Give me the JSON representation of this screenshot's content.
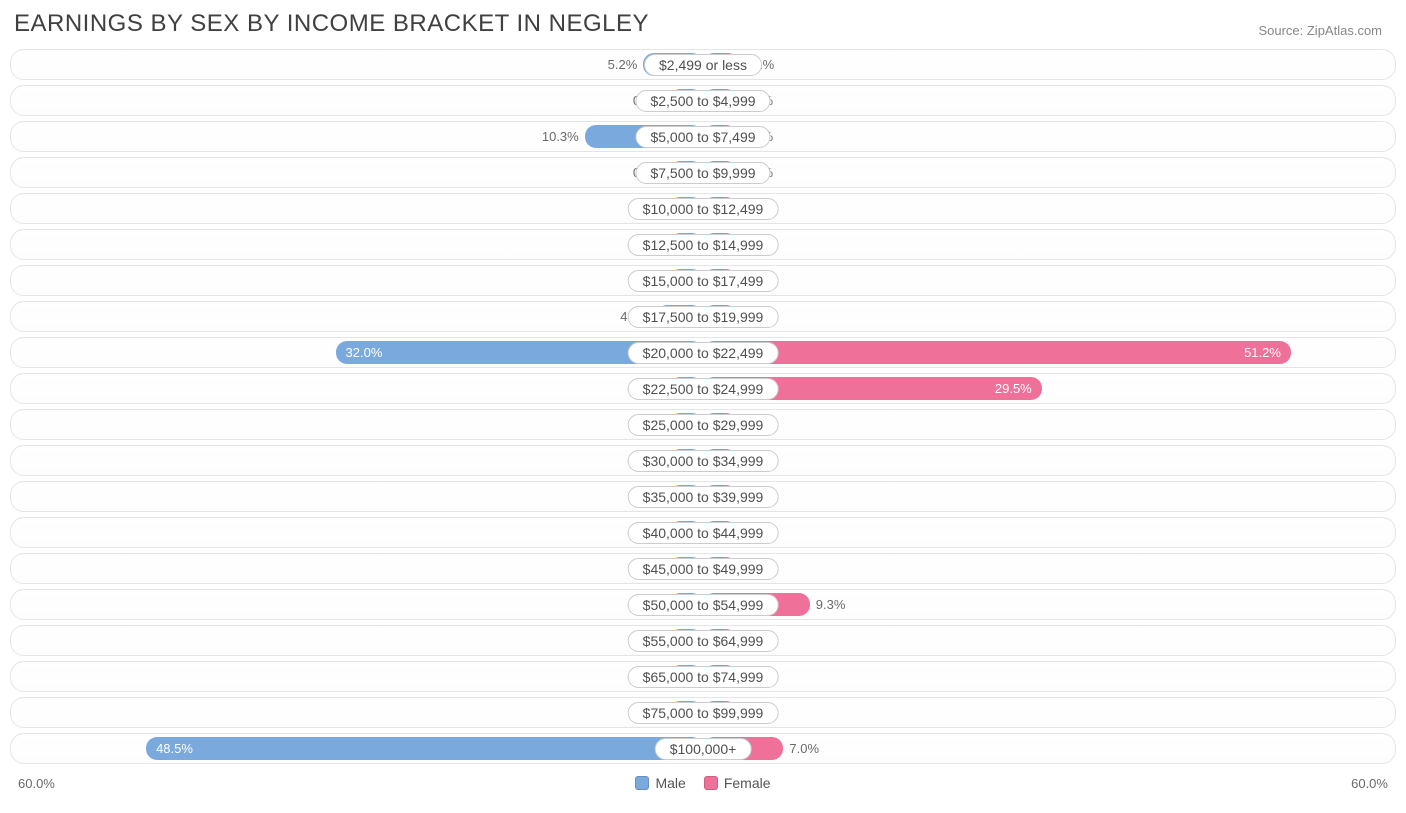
{
  "title": "EARNINGS BY SEX BY INCOME BRACKET IN NEGLEY",
  "source": "Source: ZipAtlas.com",
  "axis_max_pct": 60.0,
  "axis_label": "60.0%",
  "min_bar_pct": 5.0,
  "colors": {
    "male": "#7aa9de",
    "female": "#ef719a",
    "row_border": "#e5e5e5",
    "pill_border": "#cccccc",
    "text": "#505050",
    "muted": "#6a6a6a",
    "background": "#ffffff"
  },
  "legend": {
    "male": "Male",
    "female": "Female"
  },
  "rows": [
    {
      "label": "$2,499 or less",
      "male": 5.2,
      "female": 3.1
    },
    {
      "label": "$2,500 to $4,999",
      "male": 0.0,
      "female": 0.0
    },
    {
      "label": "$5,000 to $7,499",
      "male": 10.3,
      "female": 0.0
    },
    {
      "label": "$7,500 to $9,999",
      "male": 0.0,
      "female": 0.0
    },
    {
      "label": "$10,000 to $12,499",
      "male": 0.0,
      "female": 0.0
    },
    {
      "label": "$12,500 to $14,999",
      "male": 0.0,
      "female": 0.0
    },
    {
      "label": "$15,000 to $17,499",
      "male": 0.0,
      "female": 0.0
    },
    {
      "label": "$17,500 to $19,999",
      "male": 4.1,
      "female": 0.0
    },
    {
      "label": "$20,000 to $22,499",
      "male": 32.0,
      "female": 51.2
    },
    {
      "label": "$22,500 to $24,999",
      "male": 0.0,
      "female": 29.5
    },
    {
      "label": "$25,000 to $29,999",
      "male": 0.0,
      "female": 0.0
    },
    {
      "label": "$30,000 to $34,999",
      "male": 0.0,
      "female": 0.0
    },
    {
      "label": "$35,000 to $39,999",
      "male": 0.0,
      "female": 0.0
    },
    {
      "label": "$40,000 to $44,999",
      "male": 0.0,
      "female": 0.0
    },
    {
      "label": "$45,000 to $49,999",
      "male": 0.0,
      "female": 0.0
    },
    {
      "label": "$50,000 to $54,999",
      "male": 0.0,
      "female": 9.3
    },
    {
      "label": "$55,000 to $64,999",
      "male": 0.0,
      "female": 0.0
    },
    {
      "label": "$65,000 to $74,999",
      "male": 0.0,
      "female": 0.0
    },
    {
      "label": "$75,000 to $99,999",
      "male": 0.0,
      "female": 0.0
    },
    {
      "label": "$100,000+",
      "male": 48.5,
      "female": 7.0
    }
  ],
  "label_inside_threshold": 20.0
}
